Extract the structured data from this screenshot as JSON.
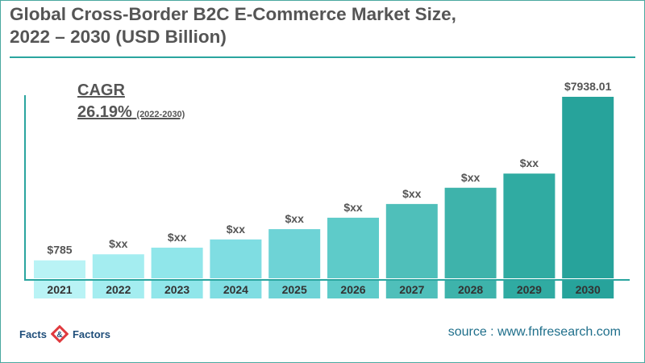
{
  "title_line1": "Global Cross-Border B2C E-Commerce Market Size,",
  "title_line2": "2022 – 2030 (USD Billion)",
  "cagr": {
    "label": "CAGR",
    "value": "26.19%",
    "period": "(2022-2030)"
  },
  "source": "source : www.fnfresearch.com",
  "logo": {
    "word1": "Facts",
    "word2": "Factors",
    "colors": [
      "#1f4e7a",
      "#e03a3e"
    ]
  },
  "colors": {
    "accent": "#2aa59f",
    "text": "#555555"
  },
  "chart_data": {
    "type": "bar",
    "categories": [
      "2021",
      "2022",
      "2023",
      "2024",
      "2025",
      "2026",
      "2027",
      "2028",
      "2029",
      "2030"
    ],
    "values": [
      785,
      1050,
      1340,
      1700,
      2150,
      2650,
      3250,
      3960,
      4580,
      7938.01
    ],
    "data_labels": [
      "$785",
      "$xx",
      "$xx",
      "$xx",
      "$xx",
      "$xx",
      "$xx",
      "$xx",
      "$xx",
      "$7938.01"
    ],
    "title": "Global Cross-Border B2C E-Commerce Market Size, 2022 – 2030 (USD Billion)",
    "xlabel": "",
    "ylabel": "",
    "grid": false,
    "bar_colors": [
      "#b9f3f5",
      "#a4edf0",
      "#90e6ea",
      "#7fdde2",
      "#6ed3d6",
      "#5ecbc9",
      "#4fbfba",
      "#3eb3ab",
      "#30aba2",
      "#27a39b"
    ],
    "label_bg_colors": [
      "#b9f3f5",
      "#a4edf0",
      "#90e6ea",
      "#7fdde2",
      "#6ed3d6",
      "#5ecbc9",
      "#4fbfba",
      "#3eb3ab",
      "#30aba2",
      "#27a39b"
    ]
  }
}
